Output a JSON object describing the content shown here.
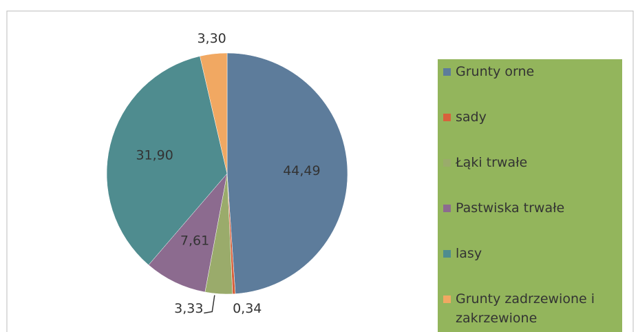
{
  "chart_data": {
    "type": "pie",
    "categories": [
      "Grunty orne",
      "sady",
      "Łąki trwałe",
      "Pastwiska trwałe",
      "lasy",
      "Grunty zadrzewione i zakrzewione"
    ],
    "values": [
      44.49,
      0.34,
      3.33,
      7.61,
      31.9,
      3.3
    ],
    "value_labels": [
      "44,49",
      "0,34",
      "3,33",
      "7,61",
      "31,90",
      "3,30"
    ],
    "colors": [
      "#5d7c9b",
      "#d8613c",
      "#9aab6b",
      "#8c6b8f",
      "#4f8c8f",
      "#f1a862"
    ],
    "legend": "right"
  }
}
